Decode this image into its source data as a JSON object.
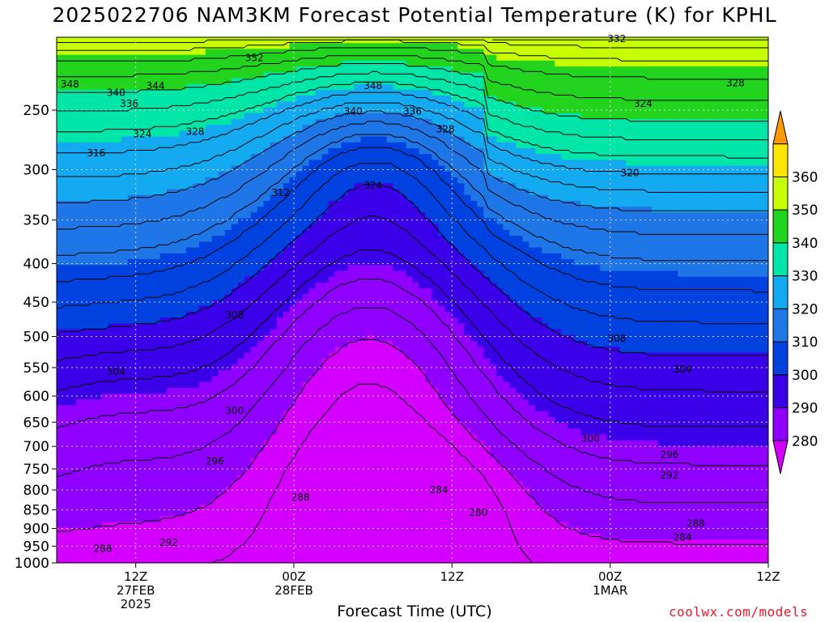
{
  "chart_data": {
    "type": "contour",
    "title": "2025022706 NAM3KM Forecast Potential Temperature (K) for KPHL",
    "xlabel": "Forecast Time (UTC)",
    "credit": "coolwx.com/models",
    "ylim": [
      1000,
      200
    ],
    "yticks": [
      250,
      300,
      350,
      400,
      450,
      500,
      550,
      600,
      650,
      700,
      750,
      800,
      850,
      900,
      950,
      1000
    ],
    "xlim": [
      6,
      60
    ],
    "xticks": [
      {
        "hour": 12,
        "lines": [
          "12Z",
          "27FEB",
          "2025"
        ]
      },
      {
        "hour": 24,
        "lines": [
          "00Z",
          "28FEB"
        ]
      },
      {
        "hour": 36,
        "lines": [
          "12Z"
        ]
      },
      {
        "hour": 48,
        "lines": [
          "00Z",
          "1MAR"
        ]
      },
      {
        "hour": 60,
        "lines": [
          "12Z"
        ]
      }
    ],
    "colorbar": {
      "labels": [
        "280",
        "290",
        "300",
        "310",
        "320",
        "330",
        "340",
        "350",
        "360"
      ],
      "colors": [
        "#d400ff",
        "#8f00ff",
        "#3a00e8",
        "#0042e0",
        "#1f76e6",
        "#14aaf2",
        "#00e6a8",
        "#23d41e",
        "#c8ff00",
        "#ffe600",
        "#ff9900"
      ]
    },
    "ground_color": "#a0522d",
    "contour_labels": [
      {
        "text": "352",
        "hour": 21,
        "p": 213
      },
      {
        "text": "348",
        "hour": 7,
        "p": 231
      },
      {
        "text": "340",
        "hour": 10.5,
        "p": 237
      },
      {
        "text": "344",
        "hour": 13.5,
        "p": 232
      },
      {
        "text": "336",
        "hour": 11.5,
        "p": 245
      },
      {
        "text": "324",
        "hour": 12.5,
        "p": 269
      },
      {
        "text": "328",
        "hour": 16.5,
        "p": 267
      },
      {
        "text": "348",
        "hour": 30,
        "p": 232
      },
      {
        "text": "340",
        "hour": 28.5,
        "p": 251
      },
      {
        "text": "336",
        "hour": 33,
        "p": 251
      },
      {
        "text": "328",
        "hour": 35.5,
        "p": 265
      },
      {
        "text": "332",
        "hour": 48.5,
        "p": 201
      },
      {
        "text": "328",
        "hour": 57.5,
        "p": 230
      },
      {
        "text": "324",
        "hour": 50.5,
        "p": 245
      },
      {
        "text": "316",
        "hour": 9,
        "p": 285
      },
      {
        "text": "324",
        "hour": 30,
        "p": 315
      },
      {
        "text": "320",
        "hour": 49.5,
        "p": 303
      },
      {
        "text": "312",
        "hour": 23,
        "p": 322
      },
      {
        "text": "308",
        "hour": 19.5,
        "p": 468
      },
      {
        "text": "308",
        "hour": 48.5,
        "p": 503
      },
      {
        "text": "304",
        "hour": 10.5,
        "p": 557
      },
      {
        "text": "304",
        "hour": 53.5,
        "p": 553
      },
      {
        "text": "300",
        "hour": 19.5,
        "p": 627
      },
      {
        "text": "300",
        "hour": 46.5,
        "p": 683
      },
      {
        "text": "296",
        "hour": 18,
        "p": 733
      },
      {
        "text": "296",
        "hour": 52.5,
        "p": 718
      },
      {
        "text": "292",
        "hour": 52.5,
        "p": 765
      },
      {
        "text": "288",
        "hour": 24.5,
        "p": 818
      },
      {
        "text": "284",
        "hour": 35,
        "p": 800
      },
      {
        "text": "280",
        "hour": 38,
        "p": 858
      },
      {
        "text": "288",
        "hour": 54.5,
        "p": 887
      },
      {
        "text": "284",
        "hour": 53.5,
        "p": 925
      },
      {
        "text": "288",
        "hour": 9.5,
        "p": 958
      },
      {
        "text": "292",
        "hour": 14.5,
        "p": 940
      }
    ]
  }
}
